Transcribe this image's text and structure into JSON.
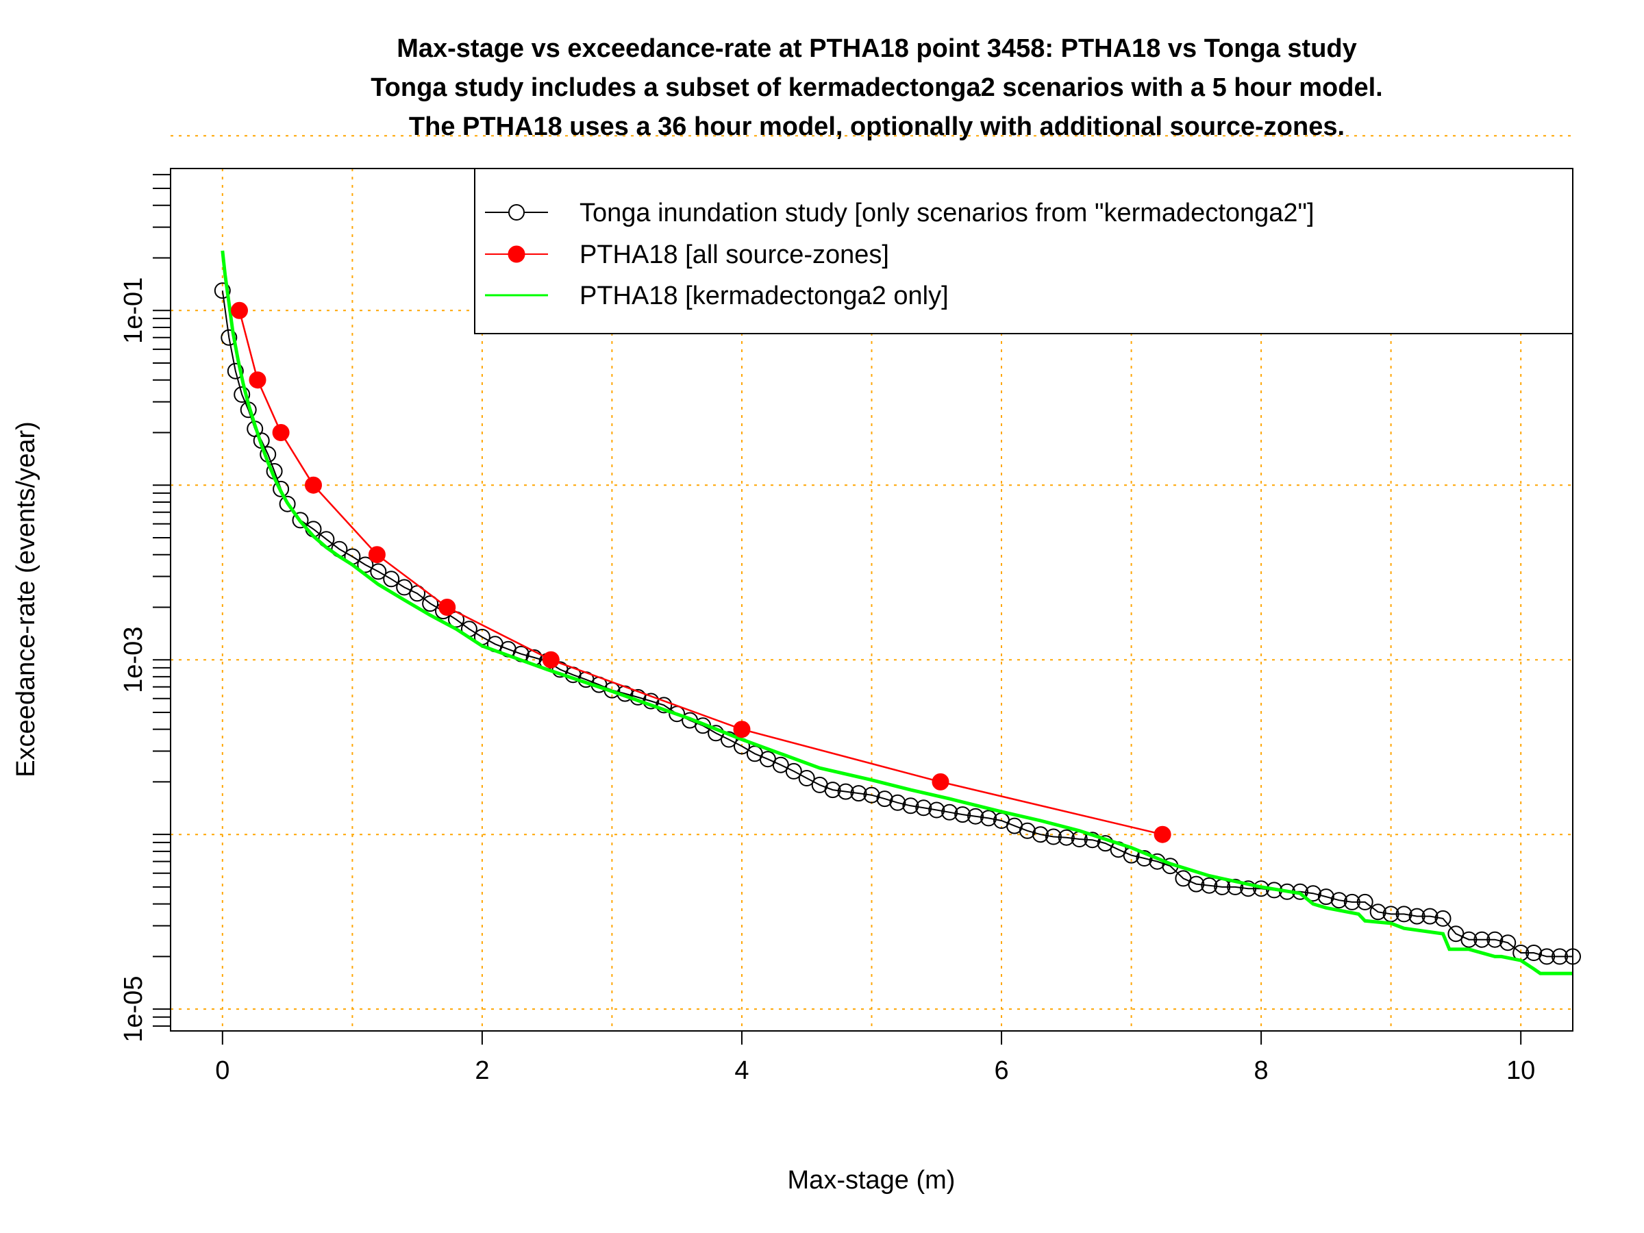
{
  "chart_data": {
    "type": "line",
    "title": [
      "Max-stage vs exceedance-rate at PTHA18 point 3458: PTHA18 vs Tonga study",
      "Tonga study includes a subset of kermadectonga2 scenarios with a 5 hour model.",
      "The PTHA18 uses a 36 hour model, optionally with additional source-zones."
    ],
    "xlabel": "Max-stage (m)",
    "ylabel": "Exceedance-rate (events/year)",
    "xlim": [
      -0.4,
      10.4
    ],
    "ylim": [
      7.5e-06,
      0.65
    ],
    "y_scale": "log",
    "grid": true,
    "grid_color": "#FFA500",
    "x_ticks": [
      0,
      2,
      4,
      6,
      8,
      10
    ],
    "x_tick_labels": [
      "0",
      "2",
      "4",
      "6",
      "8",
      "10"
    ],
    "y_ticks": [
      1e-05,
      0.001,
      0.1
    ],
    "y_tick_labels": [
      "1e-05",
      "1e-03",
      "1e-01"
    ],
    "legend_position": "top-right",
    "series": [
      {
        "name": "Tonga inundation study [only scenarios from \"kermadectonga2\"]",
        "color": "#000000",
        "marker": "open-circle",
        "x": [
          0.0,
          0.05,
          0.1,
          0.15,
          0.2,
          0.25,
          0.3,
          0.35,
          0.4,
          0.45,
          0.5,
          0.6,
          0.7,
          0.8,
          0.9,
          1.0,
          1.1,
          1.2,
          1.3,
          1.4,
          1.5,
          1.6,
          1.7,
          1.8,
          1.9,
          2.0,
          2.1,
          2.2,
          2.3,
          2.4,
          2.5,
          2.6,
          2.7,
          2.8,
          2.9,
          3.0,
          3.1,
          3.2,
          3.3,
          3.4,
          3.5,
          3.6,
          3.7,
          3.8,
          3.9,
          4.0,
          4.1,
          4.2,
          4.3,
          4.4,
          4.5,
          4.6,
          4.7,
          4.8,
          4.9,
          5.0,
          5.1,
          5.2,
          5.3,
          5.4,
          5.5,
          5.6,
          5.7,
          5.8,
          5.9,
          6.0,
          6.1,
          6.2,
          6.3,
          6.4,
          6.5,
          6.6,
          6.7,
          6.8,
          6.9,
          7.0,
          7.1,
          7.2,
          7.3,
          7.4,
          7.5,
          7.6,
          7.7,
          7.8,
          7.9,
          8.0,
          8.1,
          8.2,
          8.3,
          8.4,
          8.5,
          8.6,
          8.7,
          8.8,
          8.9,
          9.0,
          9.1,
          9.2,
          9.3,
          9.4,
          9.5,
          9.6,
          9.7,
          9.8,
          9.9,
          10.0,
          10.1,
          10.2,
          10.3,
          10.4
        ],
        "y": [
          0.13,
          0.07,
          0.045,
          0.033,
          0.027,
          0.021,
          0.018,
          0.015,
          0.012,
          0.0095,
          0.0078,
          0.0063,
          0.0056,
          0.0049,
          0.0043,
          0.0039,
          0.0035,
          0.0032,
          0.0029,
          0.0026,
          0.0024,
          0.0021,
          0.0019,
          0.0017,
          0.0015,
          0.00135,
          0.00123,
          0.00115,
          0.00108,
          0.00103,
          0.00098,
          0.00088,
          0.00082,
          0.00077,
          0.00072,
          0.00067,
          0.00064,
          0.00061,
          0.00058,
          0.00055,
          0.00049,
          0.00045,
          0.00042,
          0.00038,
          0.00035,
          0.00032,
          0.00029,
          0.00027,
          0.00025,
          0.00023,
          0.00021,
          0.000192,
          0.00018,
          0.000176,
          0.000172,
          0.000168,
          0.00016,
          0.000152,
          0.000146,
          0.000142,
          0.000138,
          0.000134,
          0.00013,
          0.000127,
          0.000124,
          0.00012,
          0.000112,
          0.000105,
          0.0001,
          9.7e-05,
          9.6e-05,
          9.4e-05,
          9.3e-05,
          8.9e-05,
          8.2e-05,
          7.6e-05,
          7.3e-05,
          7e-05,
          6.6e-05,
          5.6e-05,
          5.2e-05,
          5.1e-05,
          5e-05,
          5e-05,
          4.9e-05,
          4.9e-05,
          4.8e-05,
          4.7e-05,
          4.7e-05,
          4.6e-05,
          4.4e-05,
          4.2e-05,
          4.1e-05,
          4.1e-05,
          3.6e-05,
          3.5e-05,
          3.5e-05,
          3.4e-05,
          3.4e-05,
          3.3e-05,
          2.7e-05,
          2.5e-05,
          2.5e-05,
          2.5e-05,
          2.4e-05,
          2.1e-05,
          2.1e-05,
          2e-05,
          2e-05,
          2e-05
        ]
      },
      {
        "name": "PTHA18 [all source-zones]",
        "color": "#FF0000",
        "marker": "filled-circle",
        "x": [
          0.13,
          0.27,
          0.45,
          0.7,
          1.19,
          1.73,
          2.53,
          4.0,
          5.53,
          7.24
        ],
        "y": [
          0.1,
          0.04,
          0.02,
          0.01,
          0.004,
          0.002,
          0.001,
          0.0004,
          0.0002,
          0.0001
        ]
      },
      {
        "name": "PTHA18 [kermadectonga2 only]",
        "color": "#00FF00",
        "marker": "none",
        "x": [
          0.0,
          0.02,
          0.05,
          0.08,
          0.12,
          0.16,
          0.2,
          0.25,
          0.3,
          0.35,
          0.4,
          0.45,
          0.5,
          0.6,
          0.7,
          0.8,
          0.9,
          1.0,
          1.2,
          1.4,
          1.6,
          1.8,
          2.0,
          2.2,
          2.5,
          2.8,
          3.0,
          3.3,
          3.6,
          4.0,
          4.3,
          4.6,
          5.0,
          5.3,
          5.6,
          6.0,
          6.3,
          6.6,
          7.0,
          7.3,
          7.6,
          8.0,
          8.3,
          8.4,
          8.5,
          8.75,
          8.8,
          9.0,
          9.1,
          9.4,
          9.45,
          9.6,
          9.8,
          9.85,
          10.0,
          10.1,
          10.15,
          10.4
        ],
        "y": [
          0.22,
          0.16,
          0.11,
          0.075,
          0.052,
          0.038,
          0.029,
          0.022,
          0.017,
          0.0135,
          0.011,
          0.0092,
          0.0079,
          0.0062,
          0.0051,
          0.0044,
          0.0039,
          0.0035,
          0.0027,
          0.0022,
          0.0018,
          0.0015,
          0.0012,
          0.00106,
          0.00088,
          0.00074,
          0.00066,
          0.00055,
          0.00046,
          0.00035,
          0.00029,
          0.00024,
          0.000205,
          0.00018,
          0.00016,
          0.000135,
          0.00012,
          0.000105,
          8.4e-05,
          6.8e-05,
          5.8e-05,
          5e-05,
          4.6e-05,
          4e-05,
          3.8e-05,
          3.5e-05,
          3.2e-05,
          3.1e-05,
          2.9e-05,
          2.7e-05,
          2.2e-05,
          2.2e-05,
          2e-05,
          2e-05,
          1.9e-05,
          1.7e-05,
          1.6e-05,
          1.6e-05
        ]
      }
    ]
  }
}
